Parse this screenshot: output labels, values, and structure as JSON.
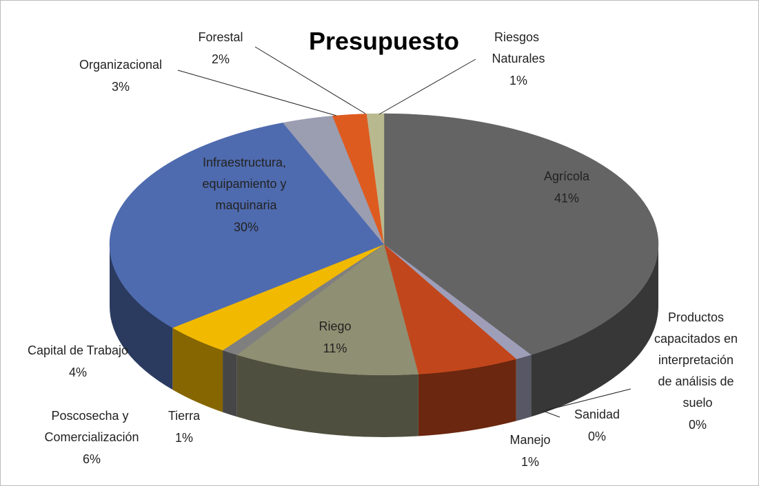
{
  "chart_data": {
    "type": "pie",
    "title": "Presupuesto",
    "categories": [
      "Agrícola",
      "Productos capacitados en interpretación de análisis de suelo",
      "Sanidad",
      "Manejo",
      "Poscosecha y Comercialización",
      "Riego",
      "Tierra",
      "Capital de Trabajo",
      "Infraestructura, equipamiento y maquinaria",
      "Organizacional",
      "Forestal",
      "Riesgos Naturales"
    ],
    "values": [
      41,
      0,
      0,
      1,
      6,
      11,
      1,
      4,
      30,
      3,
      2,
      1
    ],
    "value_labels": [
      "41%",
      "0%",
      "0%",
      "1%",
      "6%",
      "11%",
      "1%",
      "4%",
      "30%",
      "3%",
      "2%",
      "1%"
    ],
    "colors": [
      "#646464",
      "#c9a000",
      "#25408f",
      "#9e9eb8",
      "#c2461b",
      "#8f8f73",
      "#7f7f7f",
      "#f1b900",
      "#4f6baf",
      "#9b9db1",
      "#de5b20",
      "#b9b990"
    ]
  }
}
